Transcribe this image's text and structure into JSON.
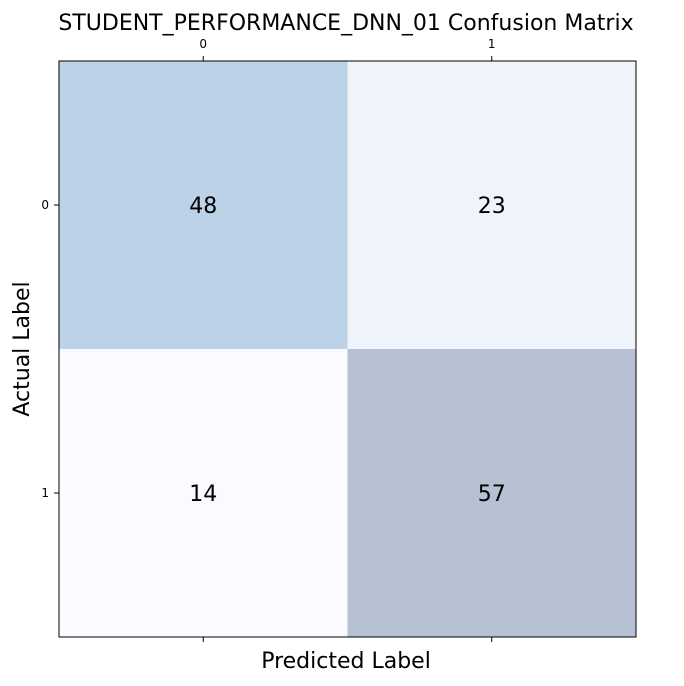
{
  "chart_data": {
    "type": "heatmap",
    "title": "STUDENT_PERFORMANCE_DNN_01 Confusion Matrix",
    "xlabel": "Predicted Label",
    "ylabel": "Actual Label",
    "x_categories": [
      "0",
      "1"
    ],
    "y_categories": [
      "0",
      "1"
    ],
    "values": [
      [
        48,
        23
      ],
      [
        14,
        57
      ]
    ],
    "colormap": "Blues",
    "grid": false,
    "x_ticks_position": "top"
  },
  "colors": {
    "cells": [
      [
        "#bcd2e6",
        "#eef4f9"
      ],
      [
        "#f9fbfe",
        "#b6c2d4"
      ]
    ],
    "frame": "#000000",
    "text": "#000000"
  }
}
